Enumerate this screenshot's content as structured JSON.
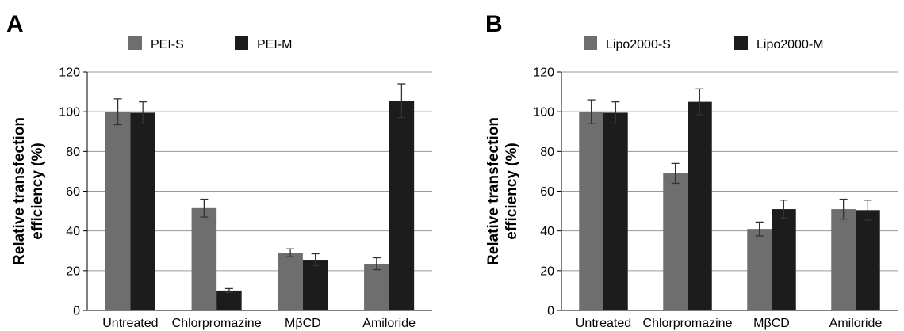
{
  "chart_data": [
    {
      "panel": "A",
      "type": "bar",
      "categories": [
        "Untreated",
        "Chlorpromazine",
        "MβCD",
        "Amiloride"
      ],
      "series": [
        {
          "name": "PEI-S",
          "color": "#6e6e6e",
          "values": [
            100,
            51.5,
            29,
            23.5
          ],
          "errors": [
            6.5,
            4.5,
            2,
            3
          ]
        },
        {
          "name": "PEI-M",
          "color": "#1c1c1c",
          "values": [
            99.5,
            10,
            25.5,
            105.5
          ],
          "errors": [
            5.5,
            1,
            3,
            8.5
          ]
        }
      ],
      "ylabel": "Relative transfection efficiency (%)",
      "ylabel_lines": [
        "Relative transfection",
        "efficiency (%)"
      ],
      "ylim": [
        0,
        120
      ],
      "yticks": [
        0,
        20,
        40,
        60,
        80,
        100,
        120
      ],
      "grid": true,
      "legend": "top"
    },
    {
      "panel": "B",
      "type": "bar",
      "categories": [
        "Untreated",
        "Chlorpromazine",
        "MβCD",
        "Amiloride"
      ],
      "series": [
        {
          "name": "Lipo2000-S",
          "color": "#6e6e6e",
          "values": [
            100,
            69,
            41,
            51
          ],
          "errors": [
            6,
            5,
            3.5,
            5
          ]
        },
        {
          "name": "Lipo2000-M",
          "color": "#1c1c1c",
          "values": [
            99.5,
            105,
            51,
            50.5
          ],
          "errors": [
            5.5,
            6.5,
            4.5,
            5
          ]
        }
      ],
      "ylabel": "Relative transfection efficiency (%)",
      "ylabel_lines": [
        "Relative transfection",
        "efficiency (%)"
      ],
      "ylim": [
        0,
        120
      ],
      "yticks": [
        0,
        20,
        40,
        60,
        80,
        100,
        120
      ],
      "grid": true,
      "legend": "top"
    }
  ]
}
